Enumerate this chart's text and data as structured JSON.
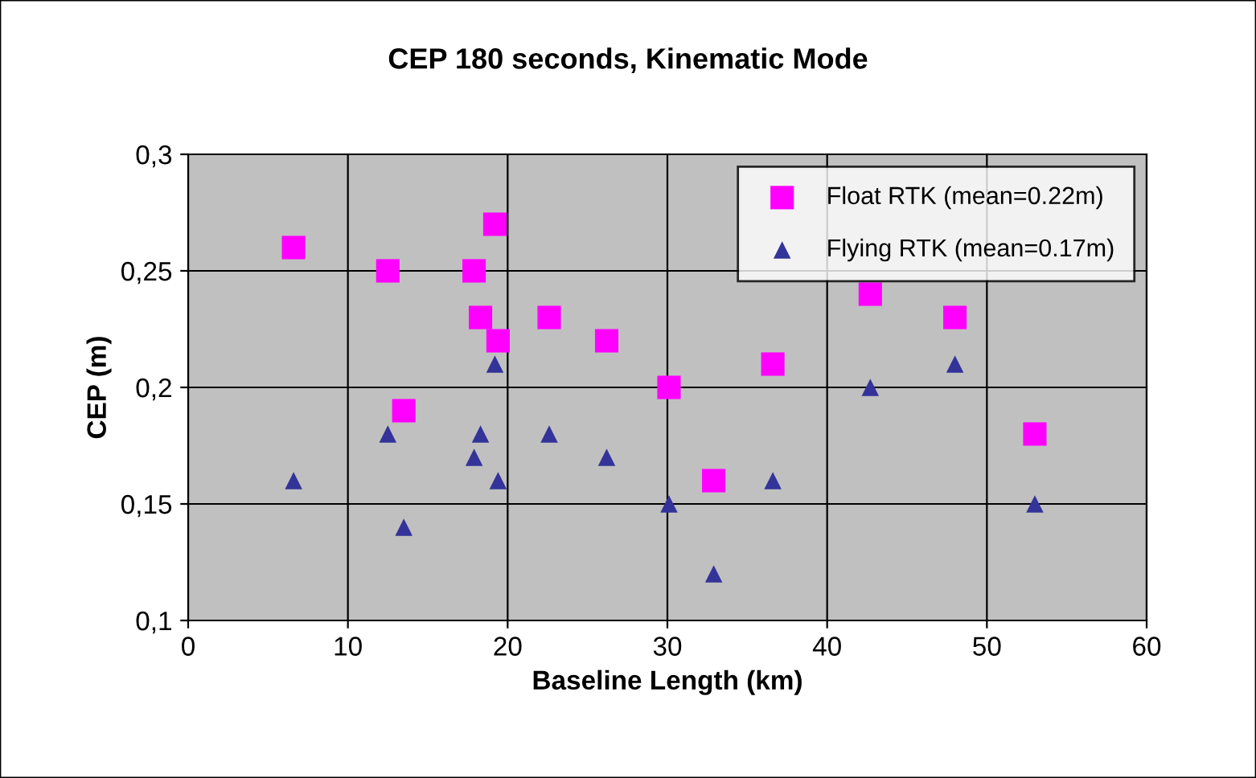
{
  "chart_data": {
    "type": "scatter",
    "title": "CEP 180 seconds, Kinematic Mode",
    "xlabel": "Baseline Length (km)",
    "ylabel": "CEP (m)",
    "xlim": [
      0,
      60
    ],
    "xticks": [
      0,
      10,
      20,
      30,
      40,
      50,
      60
    ],
    "ylim": [
      0.1,
      0.3
    ],
    "yticks": [
      {
        "value": 0.1,
        "label": "0,1"
      },
      {
        "value": 0.15,
        "label": "0,15"
      },
      {
        "value": 0.2,
        "label": "0,2"
      },
      {
        "value": 0.25,
        "label": "0,25"
      },
      {
        "value": 0.3,
        "label": "0,3"
      }
    ],
    "grid": true,
    "legend": "top right",
    "series": [
      {
        "name": "Float RTK (mean=0.22m)",
        "color": "#ff00ff",
        "marker": "square",
        "x": [
          6.6,
          12.5,
          13.5,
          17.9,
          19.2,
          18.3,
          19.4,
          22.6,
          26.2,
          30.1,
          32.9,
          36.6,
          42.7,
          48.0,
          53.0
        ],
        "values": [
          0.26,
          0.25,
          0.19,
          0.25,
          0.27,
          0.23,
          0.22,
          0.23,
          0.22,
          0.2,
          0.16,
          0.21,
          0.24,
          0.23,
          0.18
        ]
      },
      {
        "name": "Flying RTK (mean=0.17m)",
        "color": "#333399",
        "marker": "triangle",
        "x": [
          6.6,
          12.5,
          13.5,
          17.9,
          18.3,
          19.2,
          19.4,
          22.6,
          26.2,
          30.1,
          32.9,
          36.6,
          42.7,
          48.0,
          53.0
        ],
        "values": [
          0.16,
          0.18,
          0.14,
          0.17,
          0.18,
          0.21,
          0.16,
          0.18,
          0.17,
          0.15,
          0.12,
          0.16,
          0.2,
          0.21,
          0.15
        ]
      }
    ]
  }
}
